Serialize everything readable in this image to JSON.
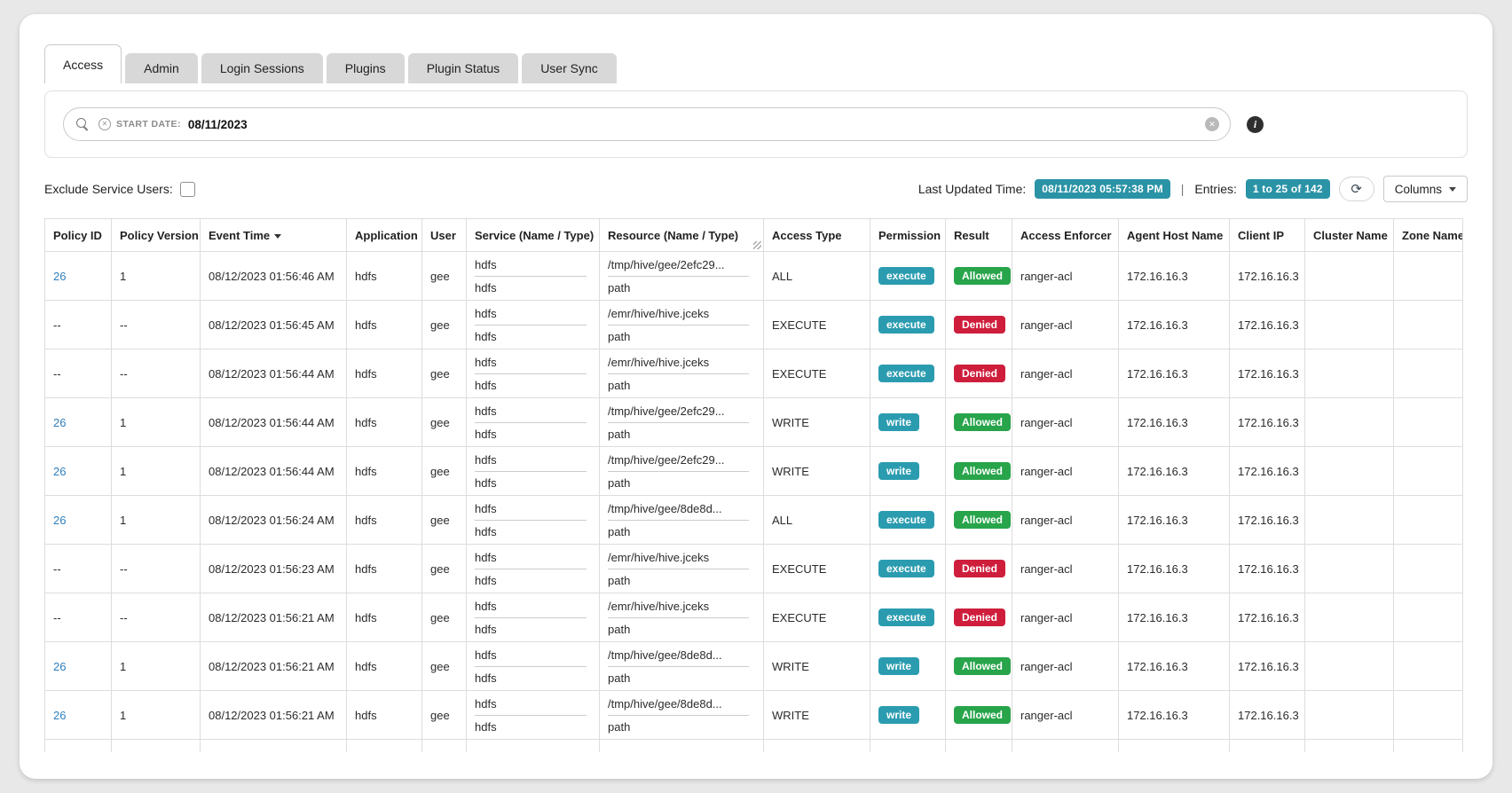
{
  "tabs": [
    {
      "label": "Access",
      "active": true
    },
    {
      "label": "Admin",
      "active": false
    },
    {
      "label": "Login Sessions",
      "active": false
    },
    {
      "label": "Plugins",
      "active": false
    },
    {
      "label": "Plugin Status",
      "active": false
    },
    {
      "label": "User Sync",
      "active": false
    }
  ],
  "search": {
    "filter_label": "START DATE:",
    "filter_value": "08/11/2023"
  },
  "controls": {
    "exclude_label": "Exclude Service Users:",
    "last_updated_label": "Last Updated Time:",
    "last_updated_value": "08/11/2023 05:57:38 PM",
    "entries_label": "Entries:",
    "entries_value": "1 to 25 of 142",
    "columns_label": "Columns"
  },
  "colors": {
    "badge_teal": "#2a93a6",
    "chip_teal": "#2b9cb0",
    "allowed_green": "#28a44b",
    "denied_red": "#ce1e3c",
    "link_blue": "#2f7fbe"
  },
  "table": {
    "headers": [
      {
        "label": "Policy ID"
      },
      {
        "label": "Policy Version"
      },
      {
        "label": "Event Time",
        "sort": "desc"
      },
      {
        "label": "Application"
      },
      {
        "label": "User"
      },
      {
        "label": "Service (Name / Type)"
      },
      {
        "label": "Resource (Name / Type)",
        "grip": true
      },
      {
        "label": "Access Type"
      },
      {
        "label": "Permission"
      },
      {
        "label": "Result"
      },
      {
        "label": "Access Enforcer"
      },
      {
        "label": "Agent Host Name"
      },
      {
        "label": "Client IP"
      },
      {
        "label": "Cluster Name"
      },
      {
        "label": "Zone Name"
      }
    ],
    "rows": [
      {
        "pid": "26",
        "pver": "1",
        "time": "08/12/2023 01:56:46 AM",
        "app": "hdfs",
        "user": "gee",
        "sname": "hdfs",
        "stype": "hdfs",
        "rname": "/tmp/hive/gee/2efc29...",
        "rtype": "path",
        "atype": "ALL",
        "perm": "execute",
        "result": "Allowed",
        "enf": "ranger-acl",
        "host": "172.16.16.3",
        "cip": "172.16.16.3",
        "cluster": "",
        "zone": ""
      },
      {
        "pid": "--",
        "pver": "--",
        "time": "08/12/2023 01:56:45 AM",
        "app": "hdfs",
        "user": "gee",
        "sname": "hdfs",
        "stype": "hdfs",
        "rname": "/emr/hive/hive.jceks",
        "rtype": "path",
        "atype": "EXECUTE",
        "perm": "execute",
        "result": "Denied",
        "enf": "ranger-acl",
        "host": "172.16.16.3",
        "cip": "172.16.16.3",
        "cluster": "",
        "zone": ""
      },
      {
        "pid": "--",
        "pver": "--",
        "time": "08/12/2023 01:56:44 AM",
        "app": "hdfs",
        "user": "gee",
        "sname": "hdfs",
        "stype": "hdfs",
        "rname": "/emr/hive/hive.jceks",
        "rtype": "path",
        "atype": "EXECUTE",
        "perm": "execute",
        "result": "Denied",
        "enf": "ranger-acl",
        "host": "172.16.16.3",
        "cip": "172.16.16.3",
        "cluster": "",
        "zone": ""
      },
      {
        "pid": "26",
        "pver": "1",
        "time": "08/12/2023 01:56:44 AM",
        "app": "hdfs",
        "user": "gee",
        "sname": "hdfs",
        "stype": "hdfs",
        "rname": "/tmp/hive/gee/2efc29...",
        "rtype": "path",
        "atype": "WRITE",
        "perm": "write",
        "result": "Allowed",
        "enf": "ranger-acl",
        "host": "172.16.16.3",
        "cip": "172.16.16.3",
        "cluster": "",
        "zone": ""
      },
      {
        "pid": "26",
        "pver": "1",
        "time": "08/12/2023 01:56:44 AM",
        "app": "hdfs",
        "user": "gee",
        "sname": "hdfs",
        "stype": "hdfs",
        "rname": "/tmp/hive/gee/2efc29...",
        "rtype": "path",
        "atype": "WRITE",
        "perm": "write",
        "result": "Allowed",
        "enf": "ranger-acl",
        "host": "172.16.16.3",
        "cip": "172.16.16.3",
        "cluster": "",
        "zone": ""
      },
      {
        "pid": "26",
        "pver": "1",
        "time": "08/12/2023 01:56:24 AM",
        "app": "hdfs",
        "user": "gee",
        "sname": "hdfs",
        "stype": "hdfs",
        "rname": "/tmp/hive/gee/8de8d...",
        "rtype": "path",
        "atype": "ALL",
        "perm": "execute",
        "result": "Allowed",
        "enf": "ranger-acl",
        "host": "172.16.16.3",
        "cip": "172.16.16.3",
        "cluster": "",
        "zone": ""
      },
      {
        "pid": "--",
        "pver": "--",
        "time": "08/12/2023 01:56:23 AM",
        "app": "hdfs",
        "user": "gee",
        "sname": "hdfs",
        "stype": "hdfs",
        "rname": "/emr/hive/hive.jceks",
        "rtype": "path",
        "atype": "EXECUTE",
        "perm": "execute",
        "result": "Denied",
        "enf": "ranger-acl",
        "host": "172.16.16.3",
        "cip": "172.16.16.3",
        "cluster": "",
        "zone": ""
      },
      {
        "pid": "--",
        "pver": "--",
        "time": "08/12/2023 01:56:21 AM",
        "app": "hdfs",
        "user": "gee",
        "sname": "hdfs",
        "stype": "hdfs",
        "rname": "/emr/hive/hive.jceks",
        "rtype": "path",
        "atype": "EXECUTE",
        "perm": "execute",
        "result": "Denied",
        "enf": "ranger-acl",
        "host": "172.16.16.3",
        "cip": "172.16.16.3",
        "cluster": "",
        "zone": ""
      },
      {
        "pid": "26",
        "pver": "1",
        "time": "08/12/2023 01:56:21 AM",
        "app": "hdfs",
        "user": "gee",
        "sname": "hdfs",
        "stype": "hdfs",
        "rname": "/tmp/hive/gee/8de8d...",
        "rtype": "path",
        "atype": "WRITE",
        "perm": "write",
        "result": "Allowed",
        "enf": "ranger-acl",
        "host": "172.16.16.3",
        "cip": "172.16.16.3",
        "cluster": "",
        "zone": ""
      },
      {
        "pid": "26",
        "pver": "1",
        "time": "08/12/2023 01:56:21 AM",
        "app": "hdfs",
        "user": "gee",
        "sname": "hdfs",
        "stype": "hdfs",
        "rname": "/tmp/hive/gee/8de8d...",
        "rtype": "path",
        "atype": "WRITE",
        "perm": "write",
        "result": "Allowed",
        "enf": "ranger-acl",
        "host": "172.16.16.3",
        "cip": "172.16.16.3",
        "cluster": "",
        "zone": ""
      }
    ]
  }
}
